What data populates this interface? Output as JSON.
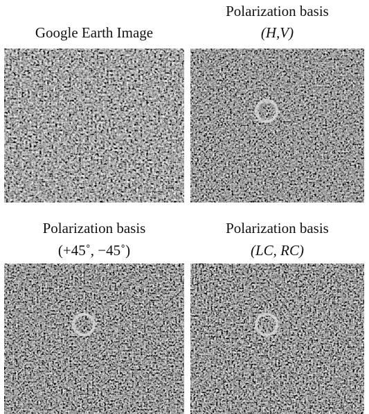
{
  "panels": [
    {
      "caption": [
        "Google Earth Image"
      ]
    },
    {
      "caption": [
        "Polarization basis",
        "(H,V)"
      ]
    },
    {
      "caption": [
        "Polarization basis",
        "(+45˚,  −45˚)"
      ]
    },
    {
      "caption": [
        "Polarization basis",
        "(LC, RC)"
      ]
    }
  ]
}
